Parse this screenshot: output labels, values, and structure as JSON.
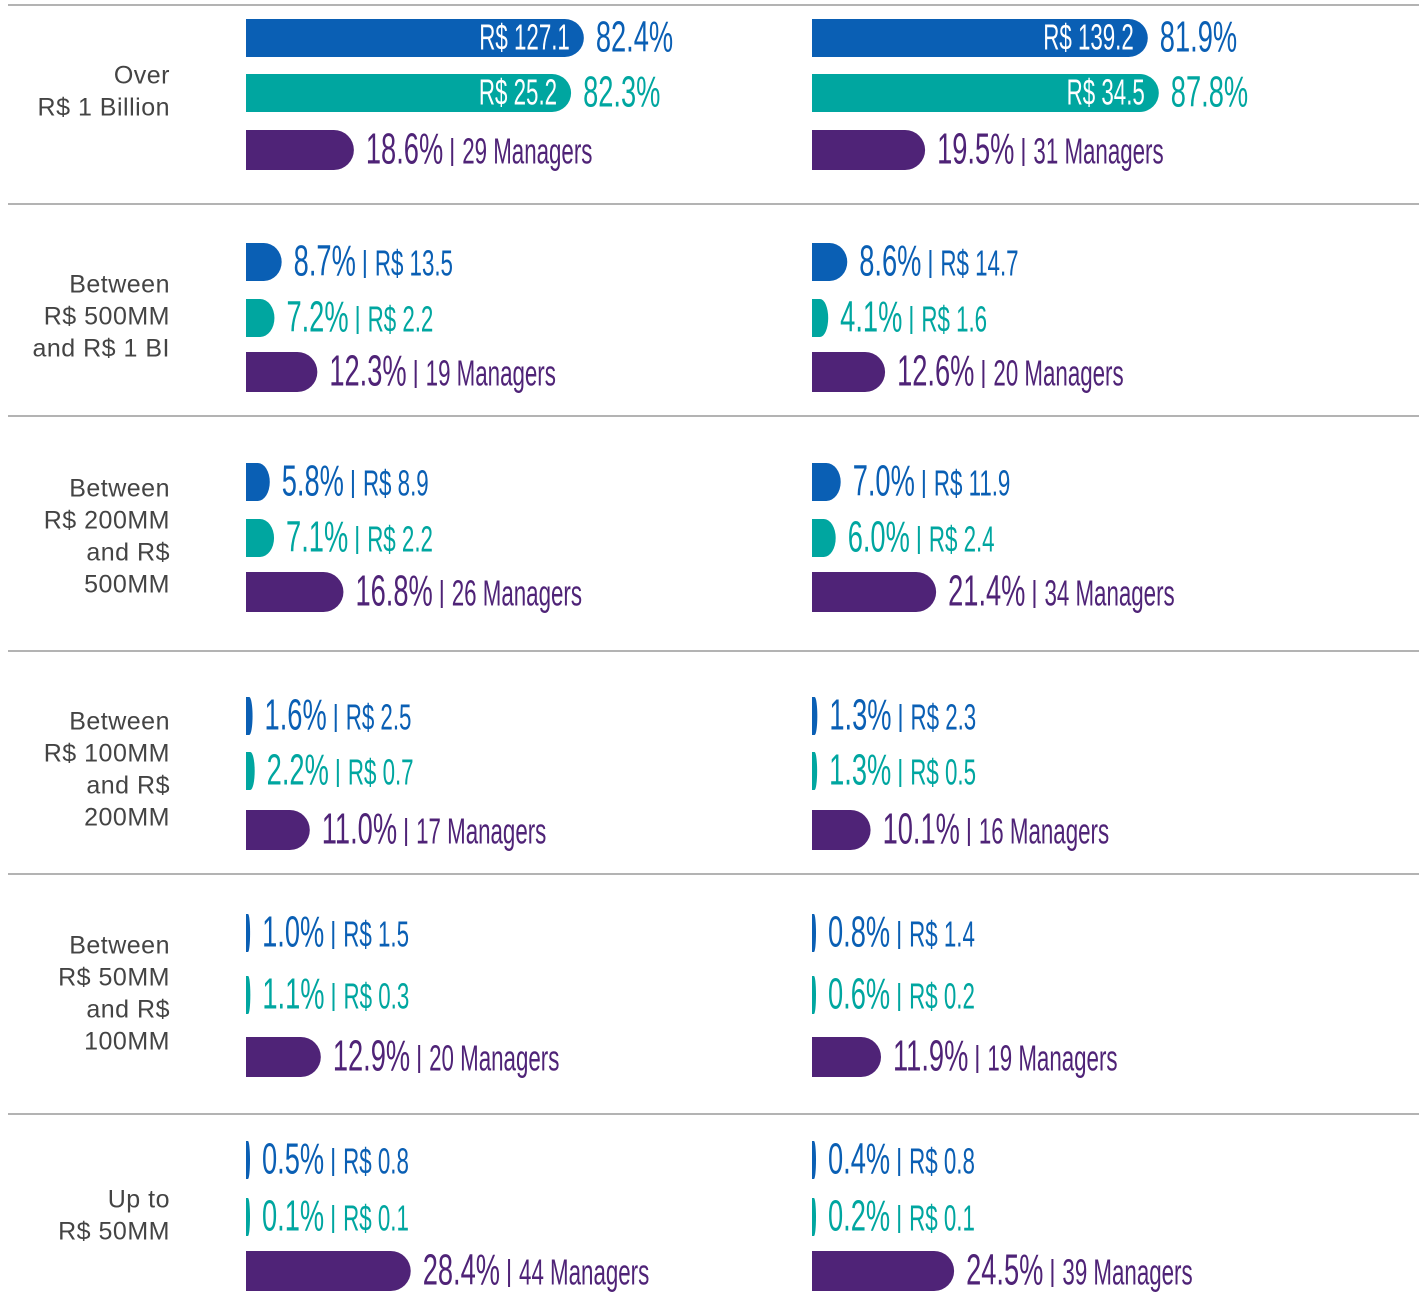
{
  "chart_data": {
    "type": "bar",
    "categories": [
      [
        "Over",
        "R$ 1 Billion"
      ],
      [
        "Between",
        "R$ 500MM",
        "and R$ 1 BI"
      ],
      [
        "Between",
        "R$ 200MM",
        "and R$",
        "500MM"
      ],
      [
        "Between",
        "R$ 100MM",
        "and R$",
        "200MM"
      ],
      [
        "Between",
        "R$ 50MM",
        "and R$",
        "100MM"
      ],
      [
        "Up to",
        "R$ 50MM"
      ]
    ],
    "panels": [
      {
        "series": [
          {
            "color": "#0a5fb4",
            "values": [
              82.4,
              8.7,
              5.8,
              1.6,
              1.0,
              0.5
            ],
            "value_labels": [
              "82.4%",
              "8.7%",
              "5.8%",
              "1.6%",
              "1.0%",
              "0.5%"
            ],
            "amounts": [
              127.1,
              13.5,
              8.9,
              2.5,
              1.5,
              0.8
            ],
            "amount_labels": [
              "R$ 127.1",
              "R$ 13.5",
              "R$ 8.9",
              "R$ 2.5",
              "R$ 1.5",
              "R$ 0.8"
            ]
          },
          {
            "color": "#00a6a0",
            "values": [
              82.3,
              7.2,
              7.1,
              2.2,
              1.1,
              0.1
            ],
            "value_labels": [
              "82.3%",
              "7.2%",
              "7.1%",
              "2.2%",
              "1.1%",
              "0.1%"
            ],
            "amounts": [
              25.2,
              2.2,
              2.2,
              0.7,
              0.3,
              0.1
            ],
            "amount_labels": [
              "R$ 25.2",
              "R$ 2.2",
              "R$ 2.2",
              "R$ 0.7",
              "R$ 0.3",
              "R$ 0.1"
            ]
          },
          {
            "color": "#4f2377",
            "values": [
              18.6,
              12.3,
              16.8,
              11.0,
              12.9,
              28.4
            ],
            "value_labels": [
              "18.6%",
              "12.3%",
              "16.8%",
              "11.0%",
              "12.9%",
              "28.4%"
            ],
            "amounts": [
              29,
              19,
              26,
              17,
              20,
              44
            ],
            "amount_labels": [
              "29 Managers",
              "19 Managers",
              "26 Managers",
              "17 Managers",
              "20 Managers",
              "44 Managers"
            ]
          }
        ]
      },
      {
        "series": [
          {
            "color": "#0a5fb4",
            "values": [
              81.9,
              8.6,
              7.0,
              1.3,
              0.8,
              0.4
            ],
            "value_labels": [
              "81.9%",
              "8.6%",
              "7.0%",
              "1.3%",
              "0.8%",
              "0.4%"
            ],
            "amounts": [
              139.2,
              14.7,
              11.9,
              2.3,
              1.4,
              0.8
            ],
            "amount_labels": [
              "R$ 139.2",
              "R$ 14.7",
              "R$ 11.9",
              "R$ 2.3",
              "R$ 1.4",
              "R$ 0.8"
            ]
          },
          {
            "color": "#00a6a0",
            "values": [
              87.8,
              4.1,
              6.0,
              1.3,
              0.6,
              0.2
            ],
            "value_labels": [
              "87.8%",
              "4.1%",
              "6.0%",
              "1.3%",
              "0.6%",
              "0.2%"
            ],
            "amounts": [
              34.5,
              1.6,
              2.4,
              0.5,
              0.2,
              0.1
            ],
            "amount_labels": [
              "R$ 34.5",
              "R$ 1.6",
              "R$ 2.4",
              "R$ 0.5",
              "R$ 0.2",
              "R$ 0.1"
            ]
          },
          {
            "color": "#4f2377",
            "values": [
              19.5,
              12.6,
              21.4,
              10.1,
              11.9,
              24.5
            ],
            "value_labels": [
              "19.5%",
              "12.6%",
              "21.4%",
              "10.1%",
              "11.9%",
              "24.5%"
            ],
            "amounts": [
              31,
              20,
              34,
              16,
              19,
              39
            ],
            "amount_labels": [
              "31 Managers",
              "20 Managers",
              "34 Managers",
              "16 Managers",
              "19 Managers",
              "39 Managers"
            ]
          }
        ]
      }
    ]
  }
}
